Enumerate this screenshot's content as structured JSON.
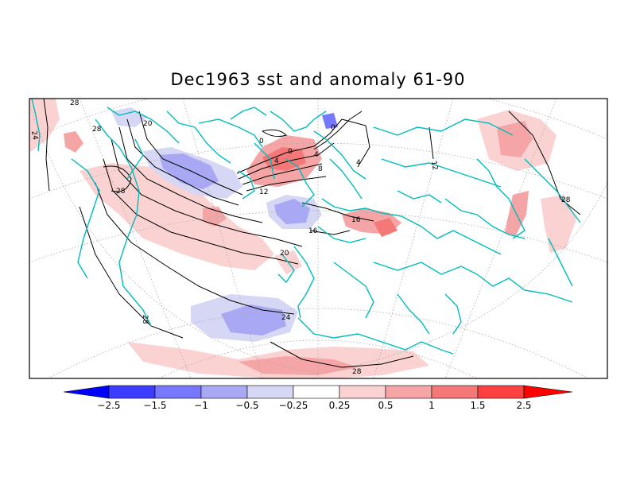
{
  "title": "Dec1963 sst and anomaly 61-90",
  "colorbar": {
    "labels": [
      "-2.5",
      "-1.5",
      "-1",
      "-0.5",
      "-0.25",
      "0.25",
      "0.5",
      "1",
      "1.5",
      "2.5"
    ],
    "colors": [
      "#0000ff",
      "#3c3cff",
      "#7878ff",
      "#a8a8f5",
      "#d6d6f5",
      "#ffffff",
      "#fad2d2",
      "#f5a5a5",
      "#f57878",
      "#ff4040",
      "#ff0000"
    ]
  },
  "contour_labels": [
    "24",
    "28",
    "28",
    "20",
    "28",
    "0",
    "4",
    "0",
    "0",
    "4",
    "8",
    "4",
    "12",
    "12",
    "16",
    "16",
    "20",
    "24",
    "28",
    "28",
    "28"
  ],
  "colors": {
    "coast": "#00bcbc",
    "contour": "#000000",
    "grid": "#aaaaaa"
  }
}
